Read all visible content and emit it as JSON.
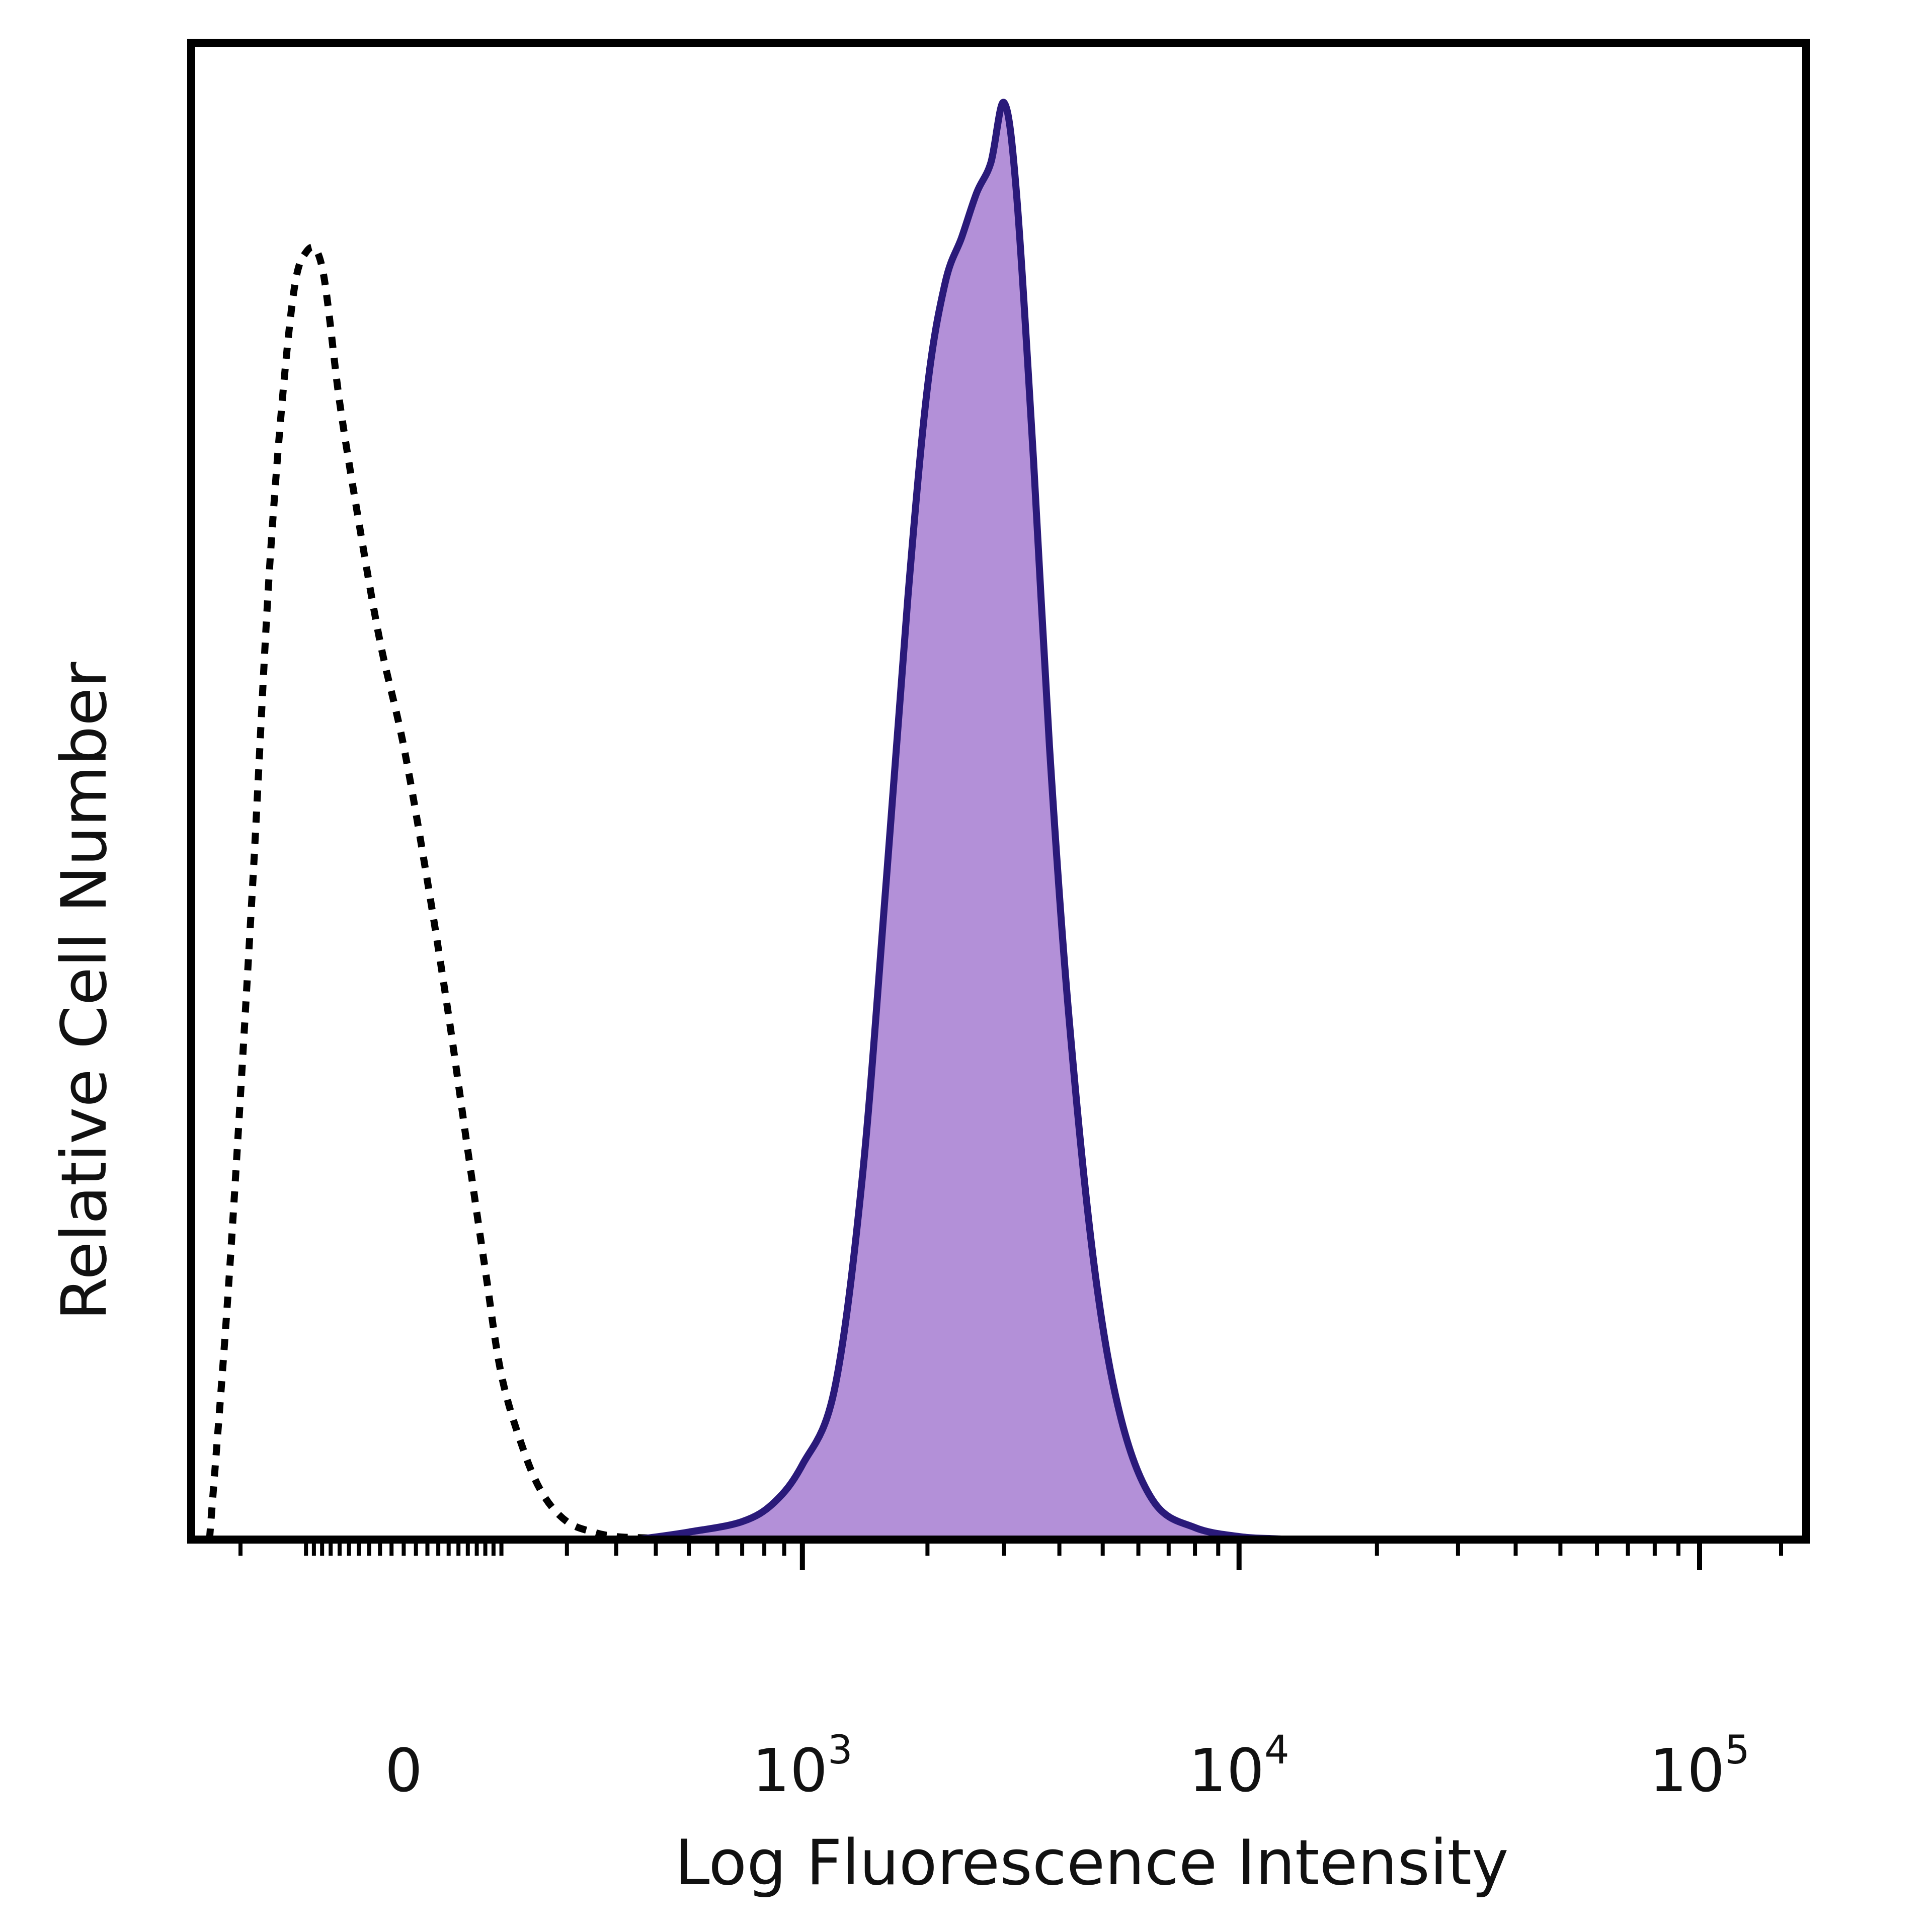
{
  "chart_data": {
    "type": "area",
    "xlabel": "Log Fluorescence Intensity",
    "ylabel": "Relative Cell Number",
    "x_scale": "biexponential",
    "xlim": [
      -300,
      170000
    ],
    "ylim": [
      0,
      100
    ],
    "x_ticks": [
      {
        "value": 0,
        "label": "0",
        "sup": ""
      },
      {
        "value": 1000,
        "label": "10",
        "sup": "3"
      },
      {
        "value": 10000,
        "label": "10",
        "sup": "4"
      },
      {
        "value": 100000,
        "label": "10",
        "sup": "5"
      }
    ],
    "grid": false,
    "legend": "none",
    "series": [
      {
        "style": "dotted-outline",
        "color": "#000000",
        "x": [
          -260,
          -220,
          -180,
          -150,
          -120,
          -100,
          -80,
          -60,
          -40,
          -20,
          0,
          20,
          40,
          60,
          80,
          100,
          130,
          160,
          200,
          250,
          300,
          380,
          450
        ],
        "y": [
          0,
          18,
          43,
          66,
          82,
          86,
          85,
          76,
          68,
          60,
          53,
          44,
          35,
          26,
          18,
          11,
          6,
          3,
          1.2,
          0.5,
          0.2,
          0.1,
          0
        ]
      },
      {
        "style": "filled",
        "color": "#2a1a7a",
        "fill": "#b390d8",
        "x": [
          350,
          500,
          700,
          850,
          1000,
          1200,
          1400,
          1600,
          1800,
          2000,
          2200,
          2400,
          2600,
          2800,
          3000,
          3200,
          3500,
          3800,
          4200,
          4800,
          5500,
          6500,
          8000,
          10000,
          12000,
          14000
        ],
        "y": [
          0,
          0.5,
          1.2,
          2.5,
          5,
          10,
          24,
          44,
          63,
          77,
          84,
          87,
          90,
          92,
          96,
          90,
          72,
          53,
          35,
          18,
          8,
          2.5,
          0.8,
          0.2,
          0.05,
          0
        ]
      }
    ]
  }
}
